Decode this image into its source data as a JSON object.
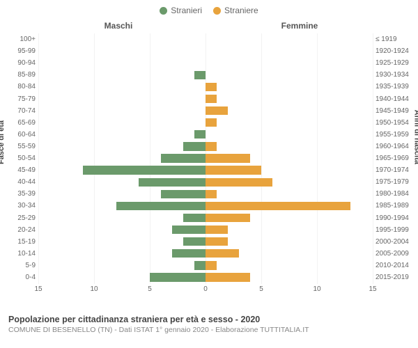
{
  "legend": {
    "male": {
      "label": "Stranieri",
      "color": "#6b9a6b"
    },
    "female": {
      "label": "Straniere",
      "color": "#e8a33d"
    }
  },
  "headers": {
    "male": "Maschi",
    "female": "Femmine"
  },
  "axis_titles": {
    "left": "Fasce di età",
    "right": "Anni di nascita"
  },
  "chart": {
    "type": "population-pyramid",
    "x_max": 15,
    "x_ticks": [
      -15,
      -10,
      -5,
      0,
      5,
      10,
      15
    ],
    "x_tick_labels": [
      "15",
      "10",
      "5",
      "0",
      "5",
      "10",
      "15"
    ],
    "bar_colors": {
      "male": "#6b9a6b",
      "female": "#e8a33d"
    },
    "grid_color": "#f2f2f2",
    "zero_line_color": "#808000",
    "background": "#ffffff",
    "rows": [
      {
        "age": "100+",
        "birth": "≤ 1919",
        "m": 0,
        "f": 0
      },
      {
        "age": "95-99",
        "birth": "1920-1924",
        "m": 0,
        "f": 0
      },
      {
        "age": "90-94",
        "birth": "1925-1929",
        "m": 0,
        "f": 0
      },
      {
        "age": "85-89",
        "birth": "1930-1934",
        "m": 1,
        "f": 0
      },
      {
        "age": "80-84",
        "birth": "1935-1939",
        "m": 0,
        "f": 1
      },
      {
        "age": "75-79",
        "birth": "1940-1944",
        "m": 0,
        "f": 1
      },
      {
        "age": "70-74",
        "birth": "1945-1949",
        "m": 0,
        "f": 2
      },
      {
        "age": "65-69",
        "birth": "1950-1954",
        "m": 0,
        "f": 1
      },
      {
        "age": "60-64",
        "birth": "1955-1959",
        "m": 1,
        "f": 0
      },
      {
        "age": "55-59",
        "birth": "1960-1964",
        "m": 2,
        "f": 1
      },
      {
        "age": "50-54",
        "birth": "1965-1969",
        "m": 4,
        "f": 4
      },
      {
        "age": "45-49",
        "birth": "1970-1974",
        "m": 11,
        "f": 5
      },
      {
        "age": "40-44",
        "birth": "1975-1979",
        "m": 6,
        "f": 6
      },
      {
        "age": "35-39",
        "birth": "1980-1984",
        "m": 4,
        "f": 1
      },
      {
        "age": "30-34",
        "birth": "1985-1989",
        "m": 8,
        "f": 13
      },
      {
        "age": "25-29",
        "birth": "1990-1994",
        "m": 2,
        "f": 4
      },
      {
        "age": "20-24",
        "birth": "1995-1999",
        "m": 3,
        "f": 2
      },
      {
        "age": "15-19",
        "birth": "2000-2004",
        "m": 2,
        "f": 2
      },
      {
        "age": "10-14",
        "birth": "2005-2009",
        "m": 3,
        "f": 3
      },
      {
        "age": "5-9",
        "birth": "2010-2014",
        "m": 1,
        "f": 1
      },
      {
        "age": "0-4",
        "birth": "2015-2019",
        "m": 5,
        "f": 4
      }
    ]
  },
  "footer": {
    "title": "Popolazione per cittadinanza straniera per età e sesso - 2020",
    "subtitle": "COMUNE DI BESENELLO (TN) - Dati ISTAT 1° gennaio 2020 - Elaborazione TUTTITALIA.IT"
  }
}
